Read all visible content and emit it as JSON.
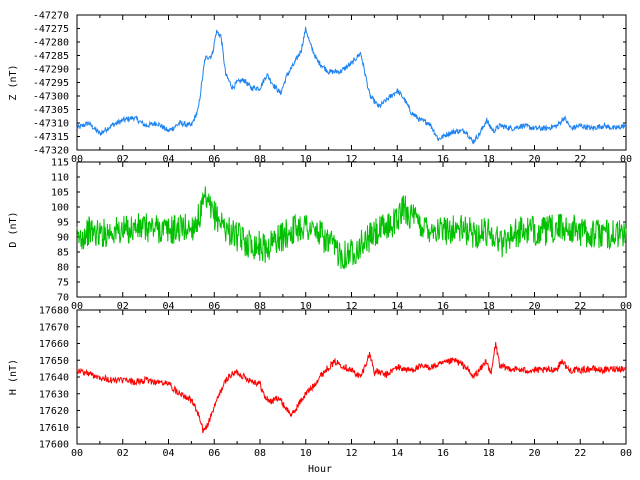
{
  "chart_data": [
    {
      "type": "line",
      "ylabel": "Z (nT)",
      "xlim": [
        0,
        24
      ],
      "ylim": [
        -47320,
        -47270
      ],
      "yticks": [
        -47270,
        -47275,
        -47280,
        -47285,
        -47290,
        -47295,
        -47300,
        -47305,
        -47310,
        -47315,
        -47320
      ],
      "color": "#1e82f0",
      "noise": 1.0,
      "x": [
        0,
        0.5,
        1,
        1.5,
        2,
        2.5,
        3,
        3.5,
        4,
        4.5,
        5,
        5.3,
        5.6,
        5.9,
        6.1,
        6.3,
        6.5,
        6.8,
        7,
        7.3,
        7.6,
        8,
        8.3,
        8.6,
        8.9,
        9.2,
        9.5,
        9.8,
        10,
        10.2,
        10.5,
        11,
        11.5,
        12,
        12.4,
        12.8,
        13.2,
        13.6,
        14,
        14.3,
        14.6,
        15,
        15.4,
        15.8,
        16.2,
        16.6,
        17,
        17.3,
        17.6,
        17.9,
        18.2,
        18.5,
        19,
        19.5,
        20,
        20.5,
        21,
        21.3,
        21.6,
        22,
        22.5,
        23,
        23.5,
        24
      ],
      "y": [
        -47312,
        -47310,
        -47314,
        -47311,
        -47309,
        -47308,
        -47311,
        -47310,
        -47313,
        -47310,
        -47311,
        -47305,
        -47286,
        -47285,
        -47276,
        -47278,
        -47292,
        -47297,
        -47295,
        -47294,
        -47297,
        -47297,
        -47292,
        -47296,
        -47299,
        -47292,
        -47288,
        -47283,
        -47275,
        -47281,
        -47287,
        -47291,
        -47291,
        -47288,
        -47284,
        -47300,
        -47304,
        -47301,
        -47298,
        -47301,
        -47306,
        -47309,
        -47310,
        -47316,
        -47314,
        -47313,
        -47313,
        -47317,
        -47314,
        -47309,
        -47313,
        -47311,
        -47312,
        -47311,
        -47312,
        -47312,
        -47311,
        -47308,
        -47312,
        -47311,
        -47312,
        -47311,
        -47312,
        -47311
      ]
    },
    {
      "type": "line",
      "ylabel": "D (nT)",
      "xlim": [
        0,
        24
      ],
      "ylim": [
        70,
        115
      ],
      "yticks": [
        115,
        110,
        105,
        100,
        95,
        90,
        85,
        80,
        75,
        70
      ],
      "color": "#00c000",
      "noise": 5.0,
      "x": [
        0,
        0.5,
        1,
        1.5,
        2,
        2.5,
        3,
        3.5,
        4,
        4.5,
        5,
        5.3,
        5.6,
        5.9,
        6.2,
        6.5,
        7,
        7.5,
        8,
        8.3,
        8.6,
        9,
        9.3,
        9.6,
        10,
        10.3,
        10.6,
        11,
        11.3,
        11.6,
        12,
        12.5,
        13,
        13.5,
        14,
        14.3,
        14.6,
        15,
        15.5,
        16,
        16.5,
        17,
        17.5,
        18,
        18.3,
        18.6,
        19,
        19.5,
        20,
        20.5,
        21,
        21.5,
        22,
        22.5,
        23,
        23.5,
        24
      ],
      "y": [
        89,
        92,
        91,
        92,
        92,
        93,
        93,
        93,
        92,
        93,
        93,
        96,
        102,
        98,
        96,
        93,
        90,
        88,
        87,
        86,
        89,
        90,
        92,
        93,
        94,
        92,
        91,
        88,
        86,
        84,
        85,
        88,
        91,
        93,
        96,
        100,
        97,
        94,
        93,
        92,
        93,
        92,
        91,
        92,
        90,
        88,
        91,
        92,
        92,
        92,
        93,
        93,
        92,
        91,
        91,
        91,
        91
      ]
    },
    {
      "type": "line",
      "ylabel": "H (nT)",
      "xlabel": "Hour",
      "xlim": [
        0,
        24
      ],
      "ylim": [
        17600,
        17680
      ],
      "yticks": [
        17680,
        17670,
        17660,
        17650,
        17640,
        17630,
        17620,
        17610,
        17600
      ],
      "xticks": [
        "00",
        "02",
        "04",
        "06",
        "08",
        "10",
        "12",
        "14",
        "16",
        "18",
        "20",
        "22",
        "00"
      ],
      "color": "#ff0000",
      "noise": 2.0,
      "x": [
        0,
        0.5,
        1,
        1.5,
        2,
        2.5,
        3,
        3.5,
        4,
        4.3,
        4.6,
        5,
        5.3,
        5.5,
        5.7,
        6,
        6.3,
        6.6,
        7,
        7.3,
        7.6,
        8,
        8.2,
        8.5,
        8.8,
        9.1,
        9.4,
        9.7,
        10,
        10.3,
        10.6,
        11,
        11.3,
        11.6,
        12,
        12.4,
        12.8,
        13,
        13.2,
        13.5,
        14,
        14.5,
        15,
        15.5,
        16,
        16.5,
        17,
        17.3,
        17.6,
        17.9,
        18.1,
        18.3,
        18.5,
        19,
        19.5,
        20,
        20.5,
        21,
        21.2,
        21.5,
        22,
        22.5,
        23,
        23.5,
        24
      ],
      "y": [
        17644,
        17642,
        17640,
        17638,
        17638,
        17637,
        17638,
        17637,
        17636,
        17632,
        17630,
        17626,
        17618,
        17608,
        17611,
        17622,
        17632,
        17640,
        17643,
        17640,
        17638,
        17636,
        17628,
        17625,
        17628,
        17622,
        17617,
        17624,
        17630,
        17634,
        17640,
        17646,
        17649,
        17647,
        17644,
        17640,
        17654,
        17643,
        17643,
        17641,
        17646,
        17644,
        17646,
        17646,
        17648,
        17650,
        17646,
        17640,
        17644,
        17650,
        17641,
        17660,
        17646,
        17645,
        17644,
        17644,
        17644,
        17645,
        17650,
        17644,
        17644,
        17645,
        17644,
        17645,
        17645
      ]
    }
  ]
}
